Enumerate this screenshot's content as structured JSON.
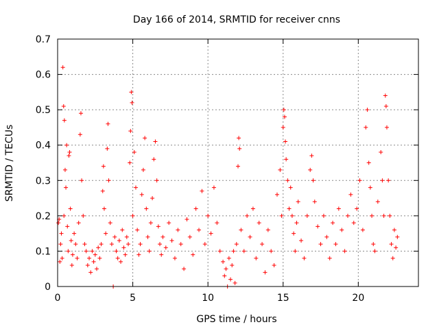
{
  "chart_data": {
    "type": "scatter",
    "title": "Day 166 of 2014, SRMTID for receiver cnns",
    "xlabel": "GPS time / hours",
    "ylabel": "SRMTID / TECUs",
    "xlim": [
      0,
      24
    ],
    "ylim": [
      0,
      0.7
    ],
    "xticks": [
      0,
      5,
      10,
      15,
      20
    ],
    "xtick_labels": [
      "0",
      "5",
      "10",
      "15",
      "20"
    ],
    "yticks": [
      0,
      0.1,
      0.2,
      0.3,
      0.4,
      0.5,
      0.6,
      0.7
    ],
    "ytick_labels": [
      "0",
      "0.1",
      "0.2",
      "0.3",
      "0.4",
      "0.5",
      "0.6",
      "0.7"
    ],
    "grid": true,
    "marker": "+",
    "color": "#ff0000",
    "series": [
      {
        "name": "SRMTID",
        "points": [
          [
            0.05,
            0.18
          ],
          [
            0.1,
            0.19
          ],
          [
            0.15,
            0.07
          ],
          [
            0.2,
            0.12
          ],
          [
            0.25,
            0.15
          ],
          [
            0.3,
            0.08
          ],
          [
            0.35,
            0.62
          ],
          [
            0.4,
            0.51
          ],
          [
            0.42,
            0.2
          ],
          [
            0.45,
            0.47
          ],
          [
            0.5,
            0.33
          ],
          [
            0.55,
            0.28
          ],
          [
            0.6,
            0.4
          ],
          [
            0.65,
            0.17
          ],
          [
            0.7,
            0.1
          ],
          [
            0.75,
            0.37
          ],
          [
            0.8,
            0.38
          ],
          [
            0.85,
            0.22
          ],
          [
            0.9,
            0.13
          ],
          [
            0.95,
            0.06
          ],
          [
            1.0,
            0.09
          ],
          [
            1.1,
            0.15
          ],
          [
            1.2,
            0.12
          ],
          [
            1.3,
            0.08
          ],
          [
            1.4,
            0.18
          ],
          [
            1.5,
            0.43
          ],
          [
            1.55,
            0.49
          ],
          [
            1.6,
            0.3
          ],
          [
            1.7,
            0.2
          ],
          [
            1.8,
            0.12
          ],
          [
            1.9,
            0.1
          ],
          [
            2.0,
            0.06
          ],
          [
            2.1,
            0.08
          ],
          [
            2.2,
            0.04
          ],
          [
            2.3,
            0.1
          ],
          [
            2.4,
            0.07
          ],
          [
            2.5,
            0.09
          ],
          [
            2.6,
            0.05
          ],
          [
            2.7,
            0.11
          ],
          [
            2.8,
            0.08
          ],
          [
            2.9,
            0.12
          ],
          [
            3.0,
            0.27
          ],
          [
            3.05,
            0.34
          ],
          [
            3.1,
            0.22
          ],
          [
            3.2,
            0.15
          ],
          [
            3.3,
            0.39
          ],
          [
            3.35,
            0.46
          ],
          [
            3.4,
            0.3
          ],
          [
            3.5,
            0.18
          ],
          [
            3.6,
            0.12
          ],
          [
            3.7,
            0.0
          ],
          [
            3.8,
            0.14
          ],
          [
            3.9,
            0.1
          ],
          [
            4.0,
            0.08
          ],
          [
            4.1,
            0.13
          ],
          [
            4.2,
            0.07
          ],
          [
            4.3,
            0.16
          ],
          [
            4.4,
            0.11
          ],
          [
            4.5,
            0.09
          ],
          [
            4.6,
            0.14
          ],
          [
            4.7,
            0.12
          ],
          [
            4.8,
            0.35
          ],
          [
            4.85,
            0.44
          ],
          [
            4.9,
            0.55
          ],
          [
            4.95,
            0.52
          ],
          [
            5.0,
            0.2
          ],
          [
            5.1,
            0.38
          ],
          [
            5.2,
            0.28
          ],
          [
            5.3,
            0.16
          ],
          [
            5.4,
            0.09
          ],
          [
            5.5,
            0.12
          ],
          [
            5.6,
            0.26
          ],
          [
            5.7,
            0.33
          ],
          [
            5.8,
            0.42
          ],
          [
            5.9,
            0.22
          ],
          [
            6.0,
            0.14
          ],
          [
            6.1,
            0.1
          ],
          [
            6.2,
            0.18
          ],
          [
            6.3,
            0.25
          ],
          [
            6.4,
            0.36
          ],
          [
            6.5,
            0.41
          ],
          [
            6.6,
            0.3
          ],
          [
            6.7,
            0.17
          ],
          [
            6.8,
            0.12
          ],
          [
            6.9,
            0.09
          ],
          [
            7.0,
            0.14
          ],
          [
            7.2,
            0.11
          ],
          [
            7.4,
            0.18
          ],
          [
            7.6,
            0.13
          ],
          [
            7.8,
            0.08
          ],
          [
            8.0,
            0.16
          ],
          [
            8.2,
            0.12
          ],
          [
            8.4,
            0.05
          ],
          [
            8.6,
            0.19
          ],
          [
            8.8,
            0.14
          ],
          [
            9.0,
            0.09
          ],
          [
            9.2,
            0.22
          ],
          [
            9.4,
            0.16
          ],
          [
            9.6,
            0.27
          ],
          [
            9.8,
            0.12
          ],
          [
            10.0,
            0.2
          ],
          [
            10.2,
            0.15
          ],
          [
            10.4,
            0.28
          ],
          [
            10.6,
            0.18
          ],
          [
            10.8,
            0.1
          ],
          [
            11.0,
            0.07
          ],
          [
            11.1,
            0.03
          ],
          [
            11.2,
            0.05
          ],
          [
            11.3,
            0.0
          ],
          [
            11.4,
            0.08
          ],
          [
            11.5,
            0.02
          ],
          [
            11.6,
            0.06
          ],
          [
            11.7,
            0.1
          ],
          [
            11.8,
            0.01
          ],
          [
            11.9,
            0.12
          ],
          [
            12.0,
            0.34
          ],
          [
            12.05,
            0.42
          ],
          [
            12.1,
            0.39
          ],
          [
            12.2,
            0.16
          ],
          [
            12.4,
            0.1
          ],
          [
            12.6,
            0.2
          ],
          [
            12.8,
            0.14
          ],
          [
            13.0,
            0.22
          ],
          [
            13.2,
            0.08
          ],
          [
            13.4,
            0.18
          ],
          [
            13.6,
            0.12
          ],
          [
            13.8,
            0.04
          ],
          [
            14.0,
            0.16
          ],
          [
            14.2,
            0.1
          ],
          [
            14.4,
            0.06
          ],
          [
            14.6,
            0.26
          ],
          [
            14.8,
            0.33
          ],
          [
            14.9,
            0.2
          ],
          [
            15.0,
            0.45
          ],
          [
            15.05,
            0.5
          ],
          [
            15.1,
            0.48
          ],
          [
            15.15,
            0.41
          ],
          [
            15.2,
            0.36
          ],
          [
            15.3,
            0.3
          ],
          [
            15.4,
            0.22
          ],
          [
            15.5,
            0.28
          ],
          [
            15.6,
            0.2
          ],
          [
            15.7,
            0.15
          ],
          [
            15.8,
            0.1
          ],
          [
            15.9,
            0.18
          ],
          [
            16.0,
            0.24
          ],
          [
            16.2,
            0.13
          ],
          [
            16.4,
            0.08
          ],
          [
            16.6,
            0.2
          ],
          [
            16.8,
            0.33
          ],
          [
            16.9,
            0.37
          ],
          [
            17.0,
            0.3
          ],
          [
            17.1,
            0.24
          ],
          [
            17.3,
            0.17
          ],
          [
            17.5,
            0.12
          ],
          [
            17.7,
            0.2
          ],
          [
            17.9,
            0.14
          ],
          [
            18.1,
            0.08
          ],
          [
            18.3,
            0.18
          ],
          [
            18.5,
            0.12
          ],
          [
            18.7,
            0.22
          ],
          [
            18.9,
            0.16
          ],
          [
            19.1,
            0.1
          ],
          [
            19.3,
            0.2
          ],
          [
            19.5,
            0.26
          ],
          [
            19.7,
            0.18
          ],
          [
            19.9,
            0.22
          ],
          [
            20.1,
            0.3
          ],
          [
            20.3,
            0.16
          ],
          [
            20.5,
            0.45
          ],
          [
            20.6,
            0.5
          ],
          [
            20.7,
            0.35
          ],
          [
            20.8,
            0.28
          ],
          [
            20.9,
            0.2
          ],
          [
            21.0,
            0.12
          ],
          [
            21.1,
            0.1
          ],
          [
            21.3,
            0.24
          ],
          [
            21.5,
            0.38
          ],
          [
            21.6,
            0.3
          ],
          [
            21.7,
            0.2
          ],
          [
            21.8,
            0.54
          ],
          [
            21.85,
            0.51
          ],
          [
            21.9,
            0.45
          ],
          [
            22.0,
            0.3
          ],
          [
            22.1,
            0.2
          ],
          [
            22.2,
            0.12
          ],
          [
            22.3,
            0.08
          ],
          [
            22.4,
            0.16
          ],
          [
            22.5,
            0.11
          ],
          [
            22.6,
            0.14
          ]
        ]
      }
    ]
  }
}
